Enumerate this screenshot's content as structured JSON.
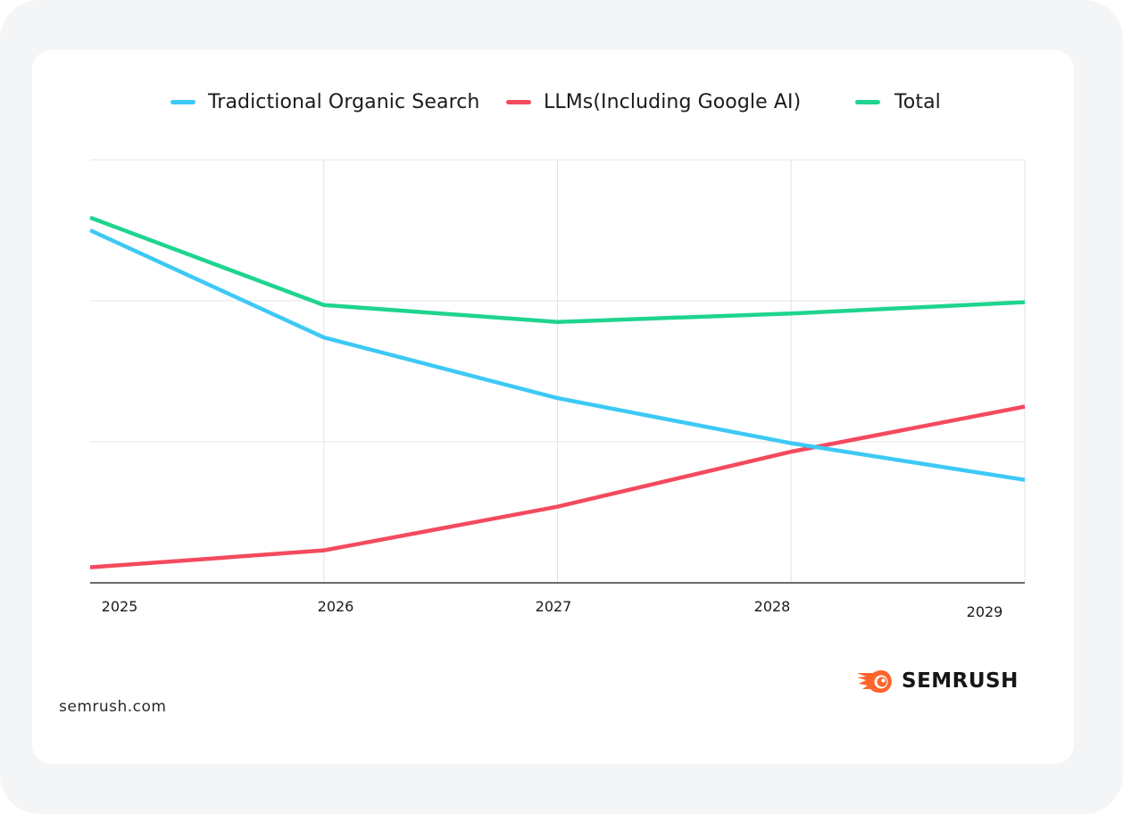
{
  "brand": {
    "name": "SEMRUSH",
    "url": "semrush.com",
    "logo_icon": "semrush-fireball-icon",
    "accent": "#ff642d"
  },
  "chart_data": {
    "type": "line",
    "title": "",
    "xlabel": "",
    "ylabel": "",
    "x": [
      "2025",
      "2026",
      "2027",
      "2028",
      "2029"
    ],
    "ylim": [
      0,
      3
    ],
    "y_units": "relative (no y-axis labels shown; 1 unit = 1 gridline interval)",
    "grid": true,
    "legend_position": "top-center",
    "series": [
      {
        "name": "Tradictional Organic Search",
        "color": "#3dc9f5",
        "values": [
          2.5,
          1.74,
          1.31,
          0.99,
          0.73
        ]
      },
      {
        "name": "LLMs(Including Google AI)",
        "color": "#f44a5e",
        "values": [
          0.11,
          0.23,
          0.54,
          0.93,
          1.25
        ]
      },
      {
        "name": "Total",
        "color": "#1fd48f",
        "values": [
          2.59,
          1.97,
          1.85,
          1.91,
          1.99
        ]
      }
    ]
  }
}
